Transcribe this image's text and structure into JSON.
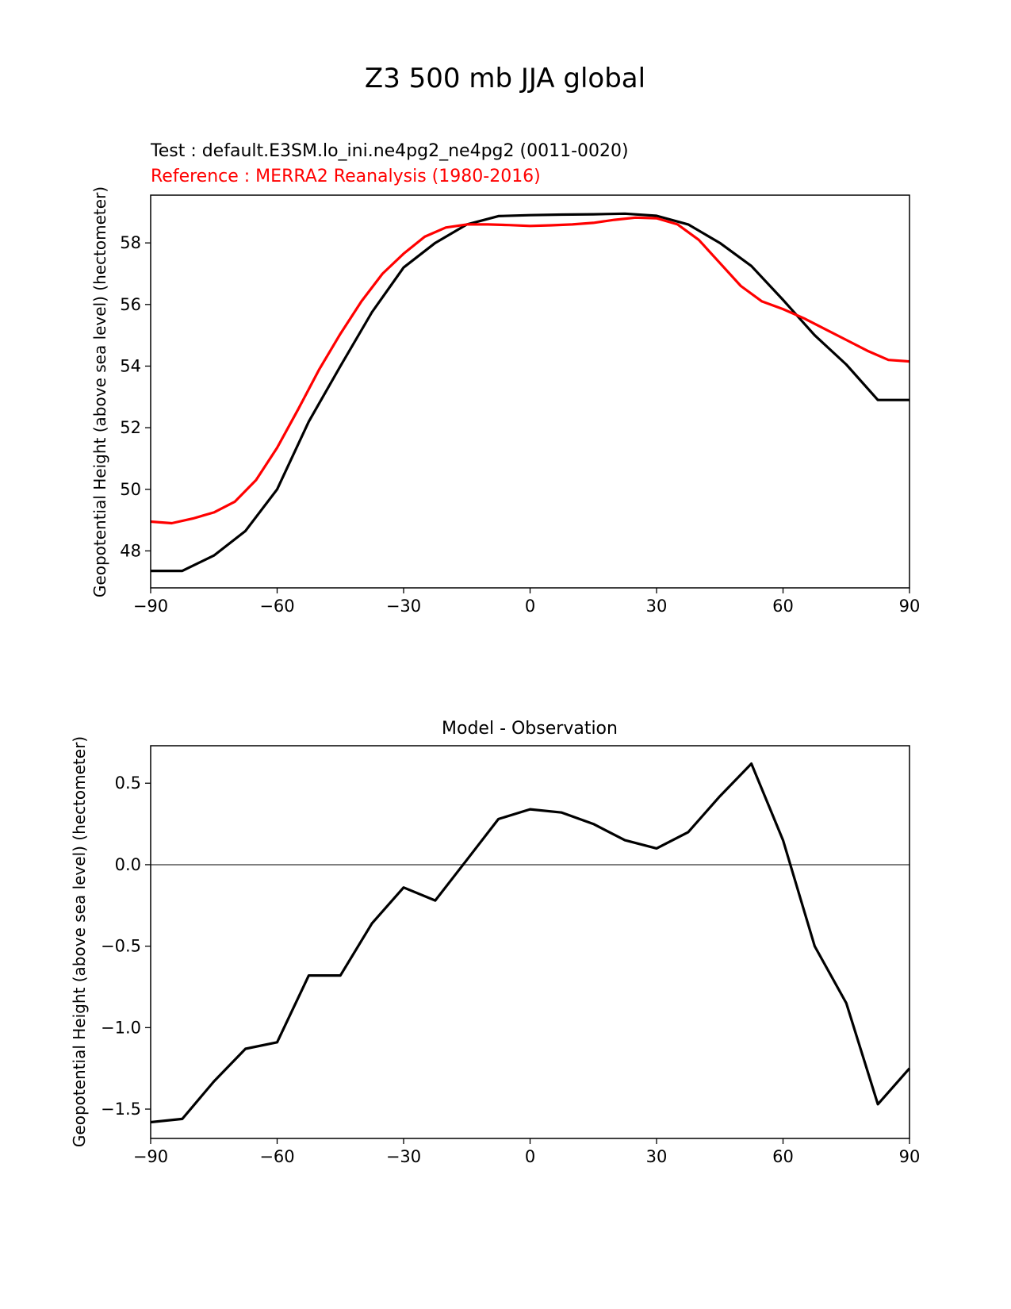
{
  "title": "Z3 500 mb JJA global",
  "colors": {
    "test": "#000000",
    "reference": "#ff0000",
    "zero_line": "#808080"
  },
  "chart_data": [
    {
      "type": "line",
      "test_label": "Test : default.E3SM.lo_ini.ne4pg2_ne4pg2 (0011-0020)",
      "reference_label": "Reference : MERRA2 Reanalysis (1980-2016)",
      "ylabel": "Geopotential Height (above sea level) (hectometer)",
      "xlim": [
        -90,
        90
      ],
      "ylim": [
        46.8,
        59.55
      ],
      "xticks": [
        -90,
        -60,
        -30,
        0,
        30,
        60,
        90
      ],
      "xtick_labels": [
        "−90",
        "−60",
        "−30",
        "0",
        "30",
        "60",
        "90"
      ],
      "yticks": [
        48,
        50,
        52,
        54,
        56,
        58
      ],
      "ytick_labels": [
        "48",
        "50",
        "52",
        "54",
        "56",
        "58"
      ],
      "series": [
        {
          "x": [
            -90,
            -82.5,
            -75,
            -67.5,
            -60,
            -52.5,
            -45,
            -37.5,
            -30,
            -22.5,
            -15,
            -7.5,
            0,
            7.5,
            15,
            22.5,
            30,
            37.5,
            45,
            52.5,
            60,
            67.5,
            75,
            82.5,
            90
          ],
          "y": [
            47.35,
            47.35,
            47.85,
            48.65,
            50.0,
            52.2,
            54.0,
            55.75,
            57.2,
            58.0,
            58.6,
            58.87,
            58.9,
            58.92,
            58.93,
            58.95,
            58.88,
            58.6,
            58.0,
            57.25,
            56.15,
            55.0,
            54.05,
            52.9,
            52.9
          ]
        },
        {
          "x": [
            -90,
            -85,
            -80,
            -75,
            -70,
            -65,
            -60,
            -55,
            -50,
            -45,
            -40,
            -35,
            -30,
            -25,
            -20,
            -15,
            -10,
            -5,
            0,
            5,
            10,
            15,
            20,
            25,
            30,
            35,
            40,
            45,
            50,
            55,
            60,
            65,
            70,
            75,
            80,
            85,
            90
          ],
          "y": [
            48.95,
            48.9,
            49.05,
            49.25,
            49.6,
            50.3,
            51.35,
            52.6,
            53.9,
            55.05,
            56.1,
            57.0,
            57.65,
            58.2,
            58.5,
            58.6,
            58.6,
            58.58,
            58.55,
            58.57,
            58.6,
            58.65,
            58.75,
            58.82,
            58.8,
            58.6,
            58.1,
            57.35,
            56.6,
            56.1,
            55.85,
            55.55,
            55.2,
            54.85,
            54.5,
            54.2,
            54.15
          ]
        }
      ]
    },
    {
      "type": "line",
      "title": "Model - Observation",
      "ylabel": "Geopotential Height (above sea level) (hectometer)",
      "xlim": [
        -90,
        90
      ],
      "ylim": [
        -1.68,
        0.73
      ],
      "xticks": [
        -90,
        -60,
        -30,
        0,
        30,
        60,
        90
      ],
      "xtick_labels": [
        "−90",
        "−60",
        "−30",
        "0",
        "30",
        "60",
        "90"
      ],
      "yticks": [
        -1.5,
        -1.0,
        -0.5,
        0.0,
        0.5
      ],
      "ytick_labels": [
        "−1.5",
        "−1.0",
        "−0.5",
        "0.0",
        "0.5"
      ],
      "zero_line": 0,
      "series": [
        {
          "x": [
            -90,
            -82.5,
            -75,
            -67.5,
            -60,
            -52.5,
            -45,
            -37.5,
            -30,
            -22.5,
            -15,
            -7.5,
            0,
            7.5,
            15,
            22.5,
            30,
            37.5,
            45,
            52.5,
            60,
            67.5,
            75,
            82.5,
            90
          ],
          "y": [
            -1.58,
            -1.56,
            -1.33,
            -1.13,
            -1.09,
            -0.68,
            -0.68,
            -0.36,
            -0.14,
            -0.22,
            0.03,
            0.28,
            0.34,
            0.32,
            0.25,
            0.15,
            0.1,
            0.2,
            0.42,
            0.62,
            0.15,
            -0.5,
            -0.85,
            -1.47,
            -1.25
          ]
        }
      ]
    }
  ]
}
